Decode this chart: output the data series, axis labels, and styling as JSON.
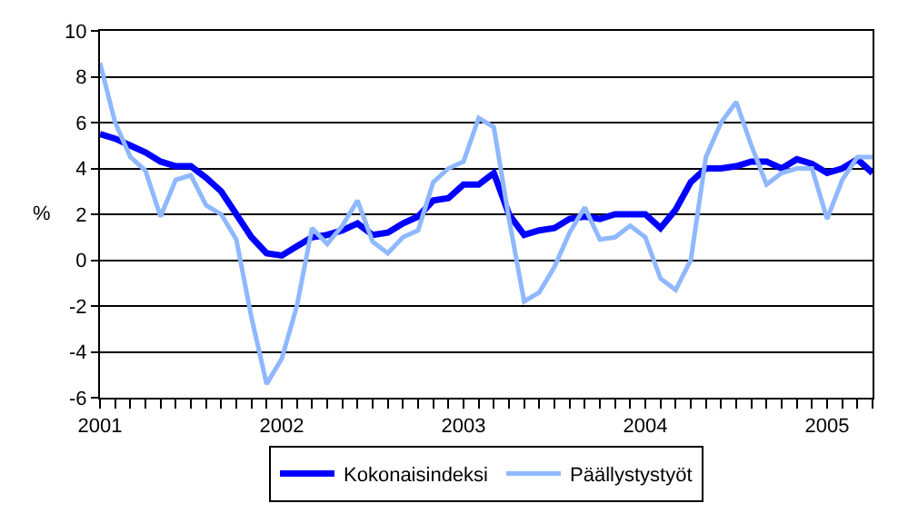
{
  "chart_data": {
    "type": "line",
    "categories": [
      "2001",
      null,
      null,
      null,
      null,
      null,
      null,
      null,
      null,
      null,
      null,
      null,
      "2002",
      null,
      null,
      null,
      null,
      null,
      null,
      null,
      null,
      null,
      null,
      null,
      "2003",
      null,
      null,
      null,
      null,
      null,
      null,
      null,
      null,
      null,
      null,
      null,
      "2004",
      null,
      null,
      null,
      null,
      null,
      null,
      null,
      null,
      null,
      null,
      null,
      "2005",
      null,
      null,
      null
    ],
    "ylabel": "%",
    "series": [
      {
        "name": "Kokonaisindeksi",
        "color": "#0000ff",
        "values": [
          5.5,
          5.3,
          5.0,
          4.7,
          4.3,
          4.1,
          4.1,
          3.6,
          3.0,
          2.0,
          1.0,
          0.3,
          0.2,
          0.6,
          1.0,
          1.1,
          1.3,
          1.6,
          1.1,
          1.2,
          1.6,
          1.9,
          2.6,
          2.7,
          3.3,
          3.3,
          3.8,
          2.0,
          1.1,
          1.3,
          1.4,
          1.8,
          1.9,
          1.8,
          2.0,
          2.0,
          2.0,
          1.4,
          2.2,
          3.4,
          4.0,
          4.0,
          4.1,
          4.3,
          4.3,
          4.0,
          4.4,
          4.2,
          3.8,
          4.0,
          4.4,
          3.8
        ]
      },
      {
        "name": "Päällystystyöt",
        "color": "#8fb8ff",
        "values": [
          8.6,
          6.0,
          4.5,
          3.9,
          1.9,
          3.5,
          3.7,
          2.4,
          2.0,
          0.9,
          -2.5,
          -5.4,
          -4.3,
          -2.0,
          1.4,
          0.7,
          1.5,
          2.6,
          0.8,
          0.3,
          1.0,
          1.3,
          3.4,
          4.0,
          4.3,
          6.2,
          5.8,
          1.8,
          -1.8,
          -1.4,
          -0.3,
          1.2,
          2.3,
          0.9,
          1.0,
          1.5,
          1.0,
          -0.8,
          -1.3,
          0.0,
          4.5,
          6.0,
          6.9,
          5.0,
          3.3,
          3.8,
          4.0,
          4.0,
          1.8,
          3.5,
          4.5,
          4.5
        ]
      }
    ],
    "ylim": [
      -6,
      10
    ],
    "yticks": [
      -6,
      -4,
      -2,
      0,
      2,
      4,
      6,
      8,
      10
    ],
    "grid": "y",
    "legend": "bottom",
    "marker": "none",
    "line_style": "solid"
  }
}
